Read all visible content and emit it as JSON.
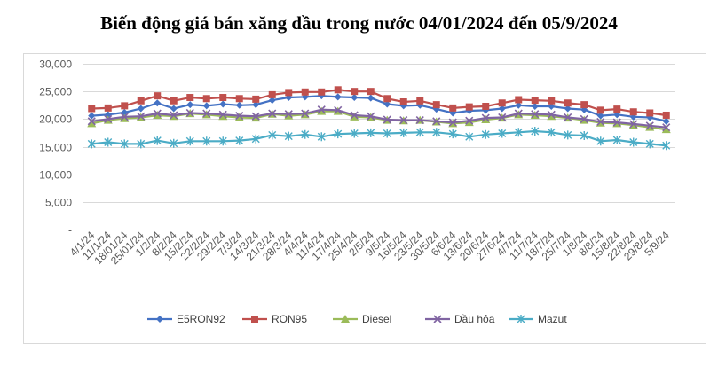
{
  "chart_data": {
    "type": "line",
    "title": "Biến động giá bán xăng dầu trong nước 04/01/2024 đến 05/9/2024",
    "xlabel": "",
    "ylabel": "",
    "ylim": [
      0,
      30000
    ],
    "yticks": [
      "-",
      "5,000",
      "10,000",
      "15,000",
      "20,000",
      "25,000",
      "30,000"
    ],
    "grid": true,
    "legend_position": "bottom",
    "categories": [
      "4/1/24",
      "11/1/24",
      "18/01/24",
      "25/01/24",
      "1/2/24",
      "8/2/24",
      "15/2/24",
      "22/2/24",
      "29/2/24",
      "7/3/24",
      "14/3/24",
      "21/3/24",
      "28/3/24",
      "4/4/24",
      "11/4/24",
      "17/4/24",
      "25/4/24",
      "2/5/24",
      "9/5/24",
      "16/5/24",
      "23/5/24",
      "30/5/24",
      "6/6/24",
      "13/6/24",
      "20/6/24",
      "27/6/24",
      "4/7/24",
      "11/7/24",
      "18/7/24",
      "25/7/24",
      "1/8/24",
      "8/8/24",
      "15/8/24",
      "22/8/24",
      "29/8/24",
      "5/9/24"
    ],
    "series": [
      {
        "name": "E5RON92",
        "color": "#4472C4",
        "marker": "diamond",
        "values": [
          20600,
          20800,
          21200,
          21900,
          22900,
          21900,
          22600,
          22400,
          22700,
          22500,
          22600,
          23400,
          23900,
          24000,
          24200,
          24000,
          23900,
          23800,
          22700,
          22400,
          22500,
          21800,
          21100,
          21500,
          21600,
          21900,
          22500,
          22300,
          22300,
          21900,
          21700,
          20600,
          20800,
          20400,
          20300,
          19600
        ]
      },
      {
        "name": "RON95",
        "color": "#C0504D",
        "marker": "square",
        "values": [
          21900,
          22000,
          22400,
          23300,
          24200,
          23300,
          23900,
          23700,
          23900,
          23700,
          23600,
          24400,
          24800,
          24900,
          24900,
          25300,
          25000,
          25000,
          23700,
          23100,
          23300,
          22600,
          22000,
          22200,
          22300,
          22900,
          23500,
          23400,
          23300,
          22900,
          22600,
          21600,
          21800,
          21300,
          21100,
          20700
        ]
      },
      {
        "name": "Diesel",
        "color": "#9BBB59",
        "marker": "triangle",
        "values": [
          19200,
          19800,
          20100,
          20300,
          20700,
          20500,
          21000,
          20800,
          20500,
          20300,
          20200,
          20900,
          20600,
          20800,
          21400,
          21400,
          20400,
          20300,
          19800,
          19700,
          19800,
          19500,
          19200,
          19400,
          19900,
          20200,
          20800,
          20700,
          20500,
          20200,
          19800,
          19300,
          19200,
          18900,
          18500,
          18100
        ]
      },
      {
        "name": "Dầu hỏa",
        "color": "#8064A2",
        "marker": "x",
        "values": [
          19600,
          20000,
          20400,
          20500,
          21000,
          20700,
          21100,
          21000,
          20800,
          20600,
          20500,
          21000,
          20900,
          21000,
          21700,
          21600,
          20700,
          20500,
          19900,
          19800,
          19800,
          19600,
          19400,
          19700,
          20200,
          20300,
          21000,
          20900,
          20800,
          20300,
          20000,
          19500,
          19400,
          19100,
          18800,
          18500
        ]
      },
      {
        "name": "Mazut",
        "color": "#4BACC6",
        "marker": "asterisk",
        "values": [
          15500,
          15800,
          15500,
          15500,
          16100,
          15600,
          16000,
          16000,
          16000,
          16100,
          16400,
          17100,
          16900,
          17200,
          16800,
          17300,
          17400,
          17500,
          17400,
          17500,
          17600,
          17600,
          17300,
          16800,
          17200,
          17400,
          17600,
          17800,
          17600,
          17100,
          17000,
          16000,
          16200,
          15800,
          15500,
          15200
        ]
      }
    ]
  }
}
